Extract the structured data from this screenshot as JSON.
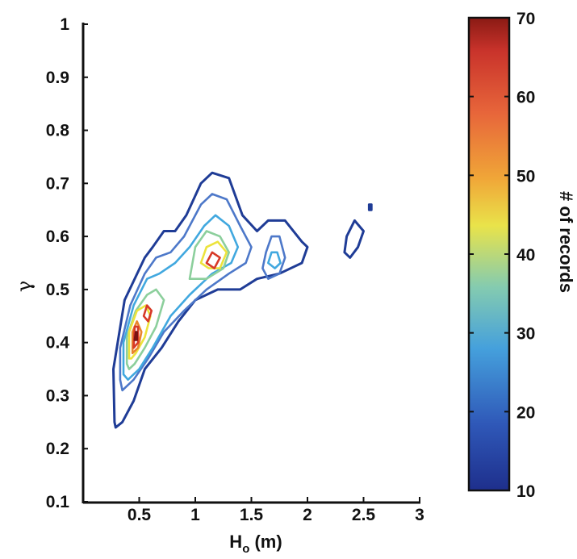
{
  "chart_data": {
    "type": "contour",
    "xlabel": "H",
    "xlabel_sub": "o",
    "xlabel_unit": " (m)",
    "ylabel": "γ",
    "xlim": [
      0,
      3
    ],
    "ylim": [
      0.1,
      1.0
    ],
    "xticks": [
      "0.5",
      "1",
      "1.5",
      "2",
      "2.5",
      "3"
    ],
    "yticks": [
      "0.1",
      "0.2",
      "0.3",
      "0.4",
      "0.5",
      "0.6",
      "0.7",
      "0.8",
      "0.9",
      "1"
    ],
    "colorbar": {
      "label": "# of records",
      "range": [
        10,
        70
      ],
      "ticks": [
        "10",
        "20",
        "30",
        "40",
        "50",
        "60",
        "70"
      ]
    },
    "grid": false,
    "contours": [
      {
        "level": 10,
        "color": "#1f3c96",
        "rings": [
          [
            [
              0.28,
              0.25
            ],
            [
              0.27,
              0.35
            ],
            [
              0.37,
              0.48
            ],
            [
              0.55,
              0.56
            ],
            [
              0.62,
              0.58
            ],
            [
              0.72,
              0.61
            ],
            [
              0.82,
              0.61
            ],
            [
              0.92,
              0.64
            ],
            [
              1.05,
              0.7
            ],
            [
              1.15,
              0.72
            ],
            [
              1.3,
              0.71
            ],
            [
              1.42,
              0.64
            ],
            [
              1.55,
              0.61
            ],
            [
              1.65,
              0.63
            ],
            [
              1.8,
              0.63
            ],
            [
              1.95,
              0.59
            ],
            [
              2.0,
              0.58
            ],
            [
              1.95,
              0.55
            ],
            [
              1.75,
              0.53
            ],
            [
              1.55,
              0.52
            ],
            [
              1.4,
              0.5
            ],
            [
              1.2,
              0.5
            ],
            [
              1.0,
              0.48
            ],
            [
              0.85,
              0.44
            ],
            [
              0.7,
              0.39
            ],
            [
              0.55,
              0.35
            ],
            [
              0.45,
              0.29
            ],
            [
              0.35,
              0.25
            ],
            [
              0.29,
              0.24
            ]
          ],
          [
            [
              2.33,
              0.57
            ],
            [
              2.35,
              0.6
            ],
            [
              2.42,
              0.63
            ],
            [
              2.5,
              0.61
            ],
            [
              2.45,
              0.58
            ],
            [
              2.38,
              0.56
            ]
          ],
          [
            [
              2.55,
              0.66
            ],
            [
              2.57,
              0.66
            ],
            [
              2.57,
              0.65
            ],
            [
              2.55,
              0.65
            ]
          ]
        ]
      },
      {
        "level": 20,
        "color": "#4d78c9",
        "rings": [
          [
            [
              0.33,
              0.33
            ],
            [
              0.33,
              0.39
            ],
            [
              0.42,
              0.47
            ],
            [
              0.55,
              0.53
            ],
            [
              0.65,
              0.56
            ],
            [
              0.78,
              0.57
            ],
            [
              0.9,
              0.6
            ],
            [
              1.05,
              0.66
            ],
            [
              1.15,
              0.68
            ],
            [
              1.28,
              0.67
            ],
            [
              1.4,
              0.62
            ],
            [
              1.5,
              0.58
            ],
            [
              1.45,
              0.55
            ],
            [
              1.3,
              0.53
            ],
            [
              1.1,
              0.5
            ],
            [
              0.9,
              0.46
            ],
            [
              0.72,
              0.42
            ],
            [
              0.58,
              0.37
            ],
            [
              0.45,
              0.33
            ],
            [
              0.35,
              0.31
            ]
          ],
          [
            [
              1.6,
              0.54
            ],
            [
              1.63,
              0.57
            ],
            [
              1.68,
              0.6
            ],
            [
              1.75,
              0.6
            ],
            [
              1.8,
              0.56
            ],
            [
              1.75,
              0.53
            ],
            [
              1.65,
              0.52
            ]
          ]
        ]
      },
      {
        "level": 30,
        "color": "#41a8df",
        "rings": [
          [
            [
              0.36,
              0.34
            ],
            [
              0.36,
              0.4
            ],
            [
              0.45,
              0.47
            ],
            [
              0.57,
              0.52
            ],
            [
              0.68,
              0.53
            ],
            [
              0.82,
              0.55
            ],
            [
              0.95,
              0.58
            ],
            [
              1.08,
              0.62
            ],
            [
              1.18,
              0.64
            ],
            [
              1.3,
              0.62
            ],
            [
              1.38,
              0.58
            ],
            [
              1.32,
              0.55
            ],
            [
              1.15,
              0.53
            ],
            [
              0.95,
              0.49
            ],
            [
              0.78,
              0.45
            ],
            [
              0.62,
              0.39
            ],
            [
              0.5,
              0.35
            ],
            [
              0.4,
              0.33
            ]
          ],
          [
            [
              1.65,
              0.55
            ],
            [
              1.68,
              0.57
            ],
            [
              1.73,
              0.57
            ],
            [
              1.76,
              0.55
            ],
            [
              1.71,
              0.54
            ]
          ]
        ]
      },
      {
        "level": 40,
        "color": "#8ccf9c",
        "rings": [
          [
            [
              0.39,
              0.36
            ],
            [
              0.39,
              0.41
            ],
            [
              0.47,
              0.46
            ],
            [
              0.57,
              0.49
            ],
            [
              0.65,
              0.5
            ],
            [
              0.72,
              0.48
            ],
            [
              0.65,
              0.43
            ],
            [
              0.55,
              0.39
            ],
            [
              0.46,
              0.36
            ],
            [
              0.41,
              0.35
            ]
          ],
          [
            [
              0.95,
              0.52
            ],
            [
              1.0,
              0.58
            ],
            [
              1.1,
              0.61
            ],
            [
              1.22,
              0.6
            ],
            [
              1.3,
              0.57
            ],
            [
              1.25,
              0.54
            ],
            [
              1.1,
              0.52
            ]
          ]
        ]
      },
      {
        "level": 50,
        "color": "#ece33c",
        "rings": [
          [
            [
              0.41,
              0.37
            ],
            [
              0.41,
              0.42
            ],
            [
              0.48,
              0.46
            ],
            [
              0.56,
              0.47
            ],
            [
              0.6,
              0.45
            ],
            [
              0.55,
              0.41
            ],
            [
              0.47,
              0.38
            ],
            [
              0.43,
              0.37
            ]
          ],
          [
            [
              1.05,
              0.55
            ],
            [
              1.1,
              0.58
            ],
            [
              1.2,
              0.59
            ],
            [
              1.28,
              0.57
            ],
            [
              1.22,
              0.54
            ],
            [
              1.12,
              0.54
            ]
          ]
        ]
      },
      {
        "level": 60,
        "color": "#e9852c",
        "rings": [
          [
            [
              0.44,
              0.38
            ],
            [
              0.44,
              0.42
            ],
            [
              0.48,
              0.44
            ],
            [
              0.52,
              0.42
            ],
            [
              0.49,
              0.39
            ]
          ]
        ]
      },
      {
        "level": 65,
        "color": "#d73a28",
        "rings": [
          [
            [
              0.45,
              0.39
            ],
            [
              0.46,
              0.43
            ],
            [
              0.49,
              0.43
            ],
            [
              0.49,
              0.4
            ]
          ],
          [
            [
              0.54,
              0.45
            ],
            [
              0.57,
              0.47
            ],
            [
              0.61,
              0.46
            ],
            [
              0.58,
              0.44
            ]
          ],
          [
            [
              1.1,
              0.55
            ],
            [
              1.15,
              0.57
            ],
            [
              1.22,
              0.56
            ],
            [
              1.17,
              0.54
            ]
          ]
        ]
      },
      {
        "level": 70,
        "color": "#7a1212",
        "rings": [
          [
            [
              0.46,
              0.405
            ],
            [
              0.47,
              0.42
            ],
            [
              0.48,
              0.42
            ],
            [
              0.48,
              0.405
            ]
          ]
        ]
      }
    ]
  }
}
